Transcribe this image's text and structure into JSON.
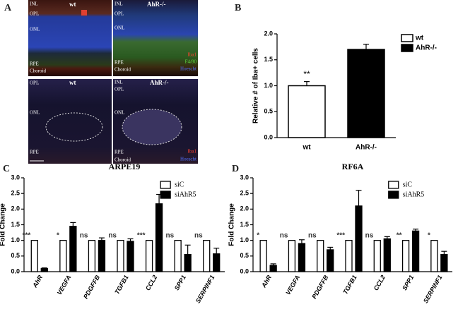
{
  "figure": {
    "panel_A": {
      "letter": "A",
      "images": [
        {
          "genotype": "wt",
          "layers": [
            "INL",
            "OPL",
            "ONL",
            "RPE",
            "Choroid"
          ]
        },
        {
          "genotype": "AhR-/-",
          "layers": [
            "INL",
            "OPL",
            "ONL",
            "RPE",
            "Choroid"
          ],
          "stains": [
            "Iba1",
            "F4/80",
            "Hoescht"
          ]
        },
        {
          "genotype": "wt",
          "layers": [
            "OPL",
            "ONL",
            "RPE"
          ]
        },
        {
          "genotype": "AhR-/-",
          "layers": [
            "INL",
            "OPL",
            "ONL",
            "RPE",
            "Choroid"
          ],
          "stains": [
            "Iba1",
            "Hoescht"
          ]
        }
      ]
    }
  },
  "chart_data": [
    {
      "type": "bar",
      "panel_label": "B",
      "ylabel": "Relative # of Iba+ cells",
      "categories": [
        "wt",
        "AhR-/-"
      ],
      "values": [
        1.0,
        1.7
      ],
      "errors": [
        0.08,
        0.1
      ],
      "colors": [
        "#ffffff",
        "#000000"
      ],
      "significance": [
        "**",
        null
      ],
      "legend": [
        "wt",
        "AhR-/-"
      ],
      "ylim": [
        0,
        2.0
      ],
      "yticks": [
        {
          "value": 0,
          "label": "0.0"
        },
        {
          "value": 0.5,
          "label": "0.5"
        },
        {
          "value": 1.0,
          "label": "1.0"
        },
        {
          "value": 1.5,
          "label": "1.5"
        },
        {
          "value": 2.0,
          "label": "2.0"
        }
      ]
    },
    {
      "type": "grouped-bar",
      "panel_label": "C",
      "title": "ARPE19",
      "ylabel": "Fold Change",
      "categories": [
        "AhR",
        "VEGFA",
        "PDGFFB",
        "TGFB1",
        "CCL2",
        "SPP1",
        "SERPINF1"
      ],
      "series": [
        {
          "name": "siC",
          "color": "#ffffff",
          "values": [
            1,
            1,
            1,
            1,
            1,
            1,
            1
          ]
        },
        {
          "name": "siAhR5",
          "color": "#000000",
          "values": [
            0.1,
            1.45,
            1.0,
            0.97,
            2.17,
            0.55,
            0.57
          ],
          "errors": [
            0.02,
            0.12,
            0.08,
            0.08,
            0.3,
            0.3,
            0.18
          ]
        }
      ],
      "significance": [
        "***",
        "*",
        "ns",
        "ns",
        "***",
        "ns",
        "ns"
      ],
      "ylim": [
        0,
        3.0
      ],
      "yticks": [
        {
          "value": 0,
          "label": "0.0"
        },
        {
          "value": 0.5,
          "label": "0.5"
        },
        {
          "value": 1.0,
          "label": "1.0"
        },
        {
          "value": 1.5,
          "label": "1.5"
        },
        {
          "value": 2.0,
          "label": "2.0"
        },
        {
          "value": 2.5,
          "label": "2.5"
        },
        {
          "value": 3.0,
          "label": "3.0"
        }
      ]
    },
    {
      "type": "grouped-bar",
      "panel_label": "D",
      "title": "RF6A",
      "ylabel": "Fold Change",
      "categories": [
        "AhR",
        "VEGFA",
        "PDGFFB",
        "TGFB1",
        "CCL2",
        "SPP1",
        "SERPINF1"
      ],
      "series": [
        {
          "name": "siC",
          "color": "#ffffff",
          "values": [
            1,
            1,
            1,
            1,
            1,
            1,
            1
          ]
        },
        {
          "name": "siAhR5",
          "color": "#000000",
          "values": [
            0.2,
            0.9,
            0.7,
            2.1,
            1.05,
            1.3,
            0.55
          ],
          "errors": [
            0.05,
            0.12,
            0.08,
            0.5,
            0.07,
            0.06,
            0.1
          ]
        }
      ],
      "significance": [
        "*",
        "ns",
        "ns",
        "***",
        "ns",
        "**",
        "*"
      ],
      "ylim": [
        0,
        3.0
      ],
      "yticks": [
        {
          "value": 0,
          "label": "0.0"
        },
        {
          "value": 0.5,
          "label": "0.5"
        },
        {
          "value": 1.0,
          "label": "1.0"
        },
        {
          "value": 1.5,
          "label": "1.5"
        },
        {
          "value": 2.0,
          "label": "2.0"
        },
        {
          "value": 2.5,
          "label": "2.5"
        },
        {
          "value": 3.0,
          "label": "3.0"
        }
      ]
    }
  ]
}
